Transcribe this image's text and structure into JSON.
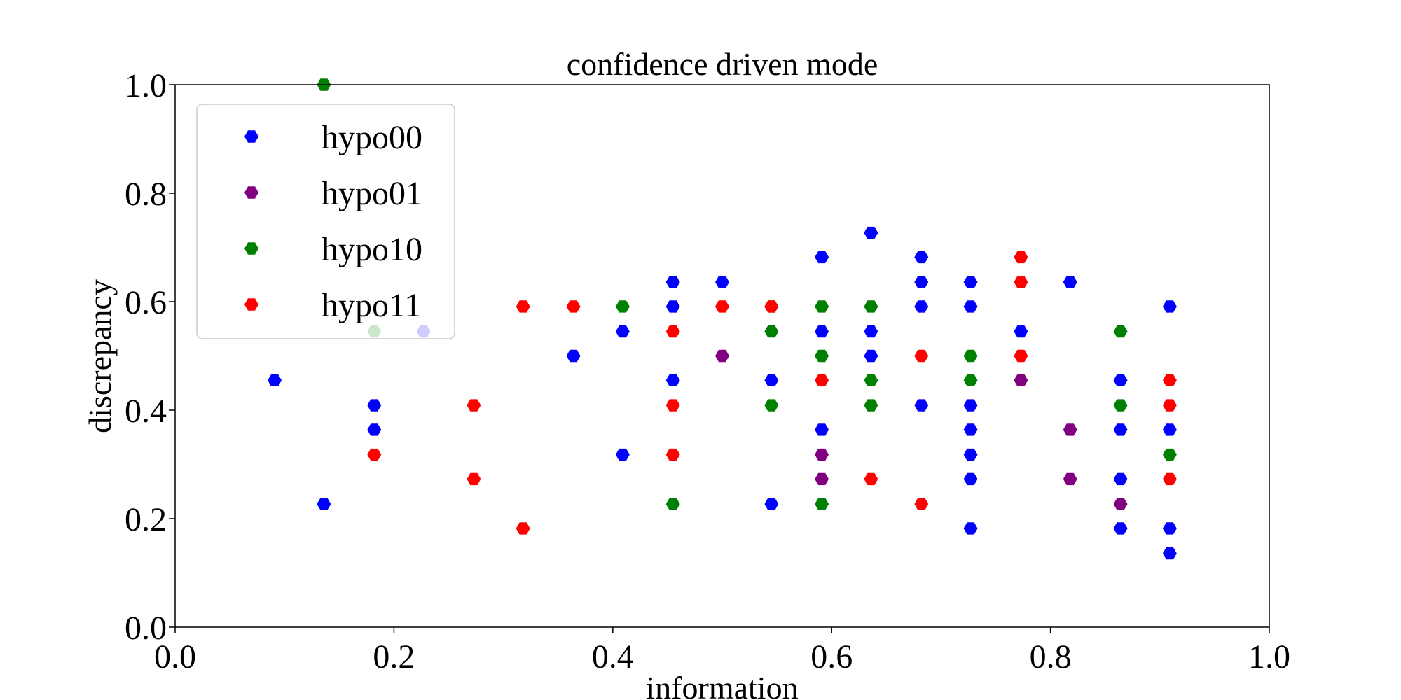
{
  "chart_data": {
    "type": "scatter",
    "title": "confidence driven mode",
    "xlabel": "information",
    "ylabel": "discrepancy",
    "xlim": [
      0.0,
      1.0
    ],
    "ylim": [
      0.0,
      1.0
    ],
    "xticks": [
      "0.0",
      "0.2",
      "0.4",
      "0.6",
      "0.8",
      "1.0"
    ],
    "yticks": [
      "0.0",
      "0.2",
      "0.4",
      "0.6",
      "0.8",
      "1.0"
    ],
    "grid": false,
    "legend_position": "top-left",
    "marker": "hexagon",
    "series": [
      {
        "name": "hypo00",
        "color": "#0000ff",
        "points": [
          [
            0.091,
            0.455
          ],
          [
            0.136,
            0.227
          ],
          [
            0.182,
            0.409
          ],
          [
            0.182,
            0.364
          ],
          [
            0.227,
            0.545
          ],
          [
            0.364,
            0.5
          ],
          [
            0.409,
            0.545
          ],
          [
            0.409,
            0.318
          ],
          [
            0.455,
            0.636
          ],
          [
            0.455,
            0.591
          ],
          [
            0.455,
            0.455
          ],
          [
            0.5,
            0.636
          ],
          [
            0.545,
            0.455
          ],
          [
            0.545,
            0.227
          ],
          [
            0.591,
            0.682
          ],
          [
            0.591,
            0.545
          ],
          [
            0.591,
            0.364
          ],
          [
            0.636,
            0.727
          ],
          [
            0.636,
            0.545
          ],
          [
            0.636,
            0.5
          ],
          [
            0.682,
            0.682
          ],
          [
            0.682,
            0.636
          ],
          [
            0.682,
            0.591
          ],
          [
            0.682,
            0.409
          ],
          [
            0.727,
            0.636
          ],
          [
            0.727,
            0.591
          ],
          [
            0.727,
            0.409
          ],
          [
            0.727,
            0.364
          ],
          [
            0.727,
            0.318
          ],
          [
            0.727,
            0.273
          ],
          [
            0.727,
            0.182
          ],
          [
            0.773,
            0.545
          ],
          [
            0.818,
            0.636
          ],
          [
            0.864,
            0.455
          ],
          [
            0.864,
            0.364
          ],
          [
            0.864,
            0.273
          ],
          [
            0.864,
            0.182
          ],
          [
            0.909,
            0.591
          ],
          [
            0.909,
            0.364
          ],
          [
            0.909,
            0.182
          ],
          [
            0.909,
            0.136
          ]
        ]
      },
      {
        "name": "hypo01",
        "color": "#800080",
        "points": [
          [
            0.5,
            0.5
          ],
          [
            0.591,
            0.318
          ],
          [
            0.591,
            0.273
          ],
          [
            0.773,
            0.455
          ],
          [
            0.818,
            0.364
          ],
          [
            0.818,
            0.273
          ],
          [
            0.864,
            0.227
          ]
        ]
      },
      {
        "name": "hypo10",
        "color": "#008000",
        "points": [
          [
            0.136,
            1.0
          ],
          [
            0.182,
            0.545
          ],
          [
            0.409,
            0.591
          ],
          [
            0.455,
            0.227
          ],
          [
            0.545,
            0.591
          ],
          [
            0.545,
            0.545
          ],
          [
            0.545,
            0.409
          ],
          [
            0.591,
            0.591
          ],
          [
            0.591,
            0.5
          ],
          [
            0.591,
            0.227
          ],
          [
            0.636,
            0.591
          ],
          [
            0.636,
            0.455
          ],
          [
            0.636,
            0.409
          ],
          [
            0.727,
            0.5
          ],
          [
            0.727,
            0.455
          ],
          [
            0.864,
            0.545
          ],
          [
            0.864,
            0.409
          ],
          [
            0.909,
            0.318
          ]
        ]
      },
      {
        "name": "hypo11",
        "color": "#ff0000",
        "points": [
          [
            0.182,
            0.318
          ],
          [
            0.273,
            0.409
          ],
          [
            0.273,
            0.273
          ],
          [
            0.318,
            0.591
          ],
          [
            0.318,
            0.182
          ],
          [
            0.364,
            0.591
          ],
          [
            0.455,
            0.545
          ],
          [
            0.455,
            0.409
          ],
          [
            0.455,
            0.318
          ],
          [
            0.5,
            0.591
          ],
          [
            0.545,
            0.591
          ],
          [
            0.591,
            0.455
          ],
          [
            0.636,
            0.273
          ],
          [
            0.682,
            0.5
          ],
          [
            0.682,
            0.227
          ],
          [
            0.773,
            0.682
          ],
          [
            0.773,
            0.636
          ],
          [
            0.773,
            0.5
          ],
          [
            0.909,
            0.455
          ],
          [
            0.909,
            0.409
          ],
          [
            0.909,
            0.273
          ]
        ]
      }
    ]
  }
}
